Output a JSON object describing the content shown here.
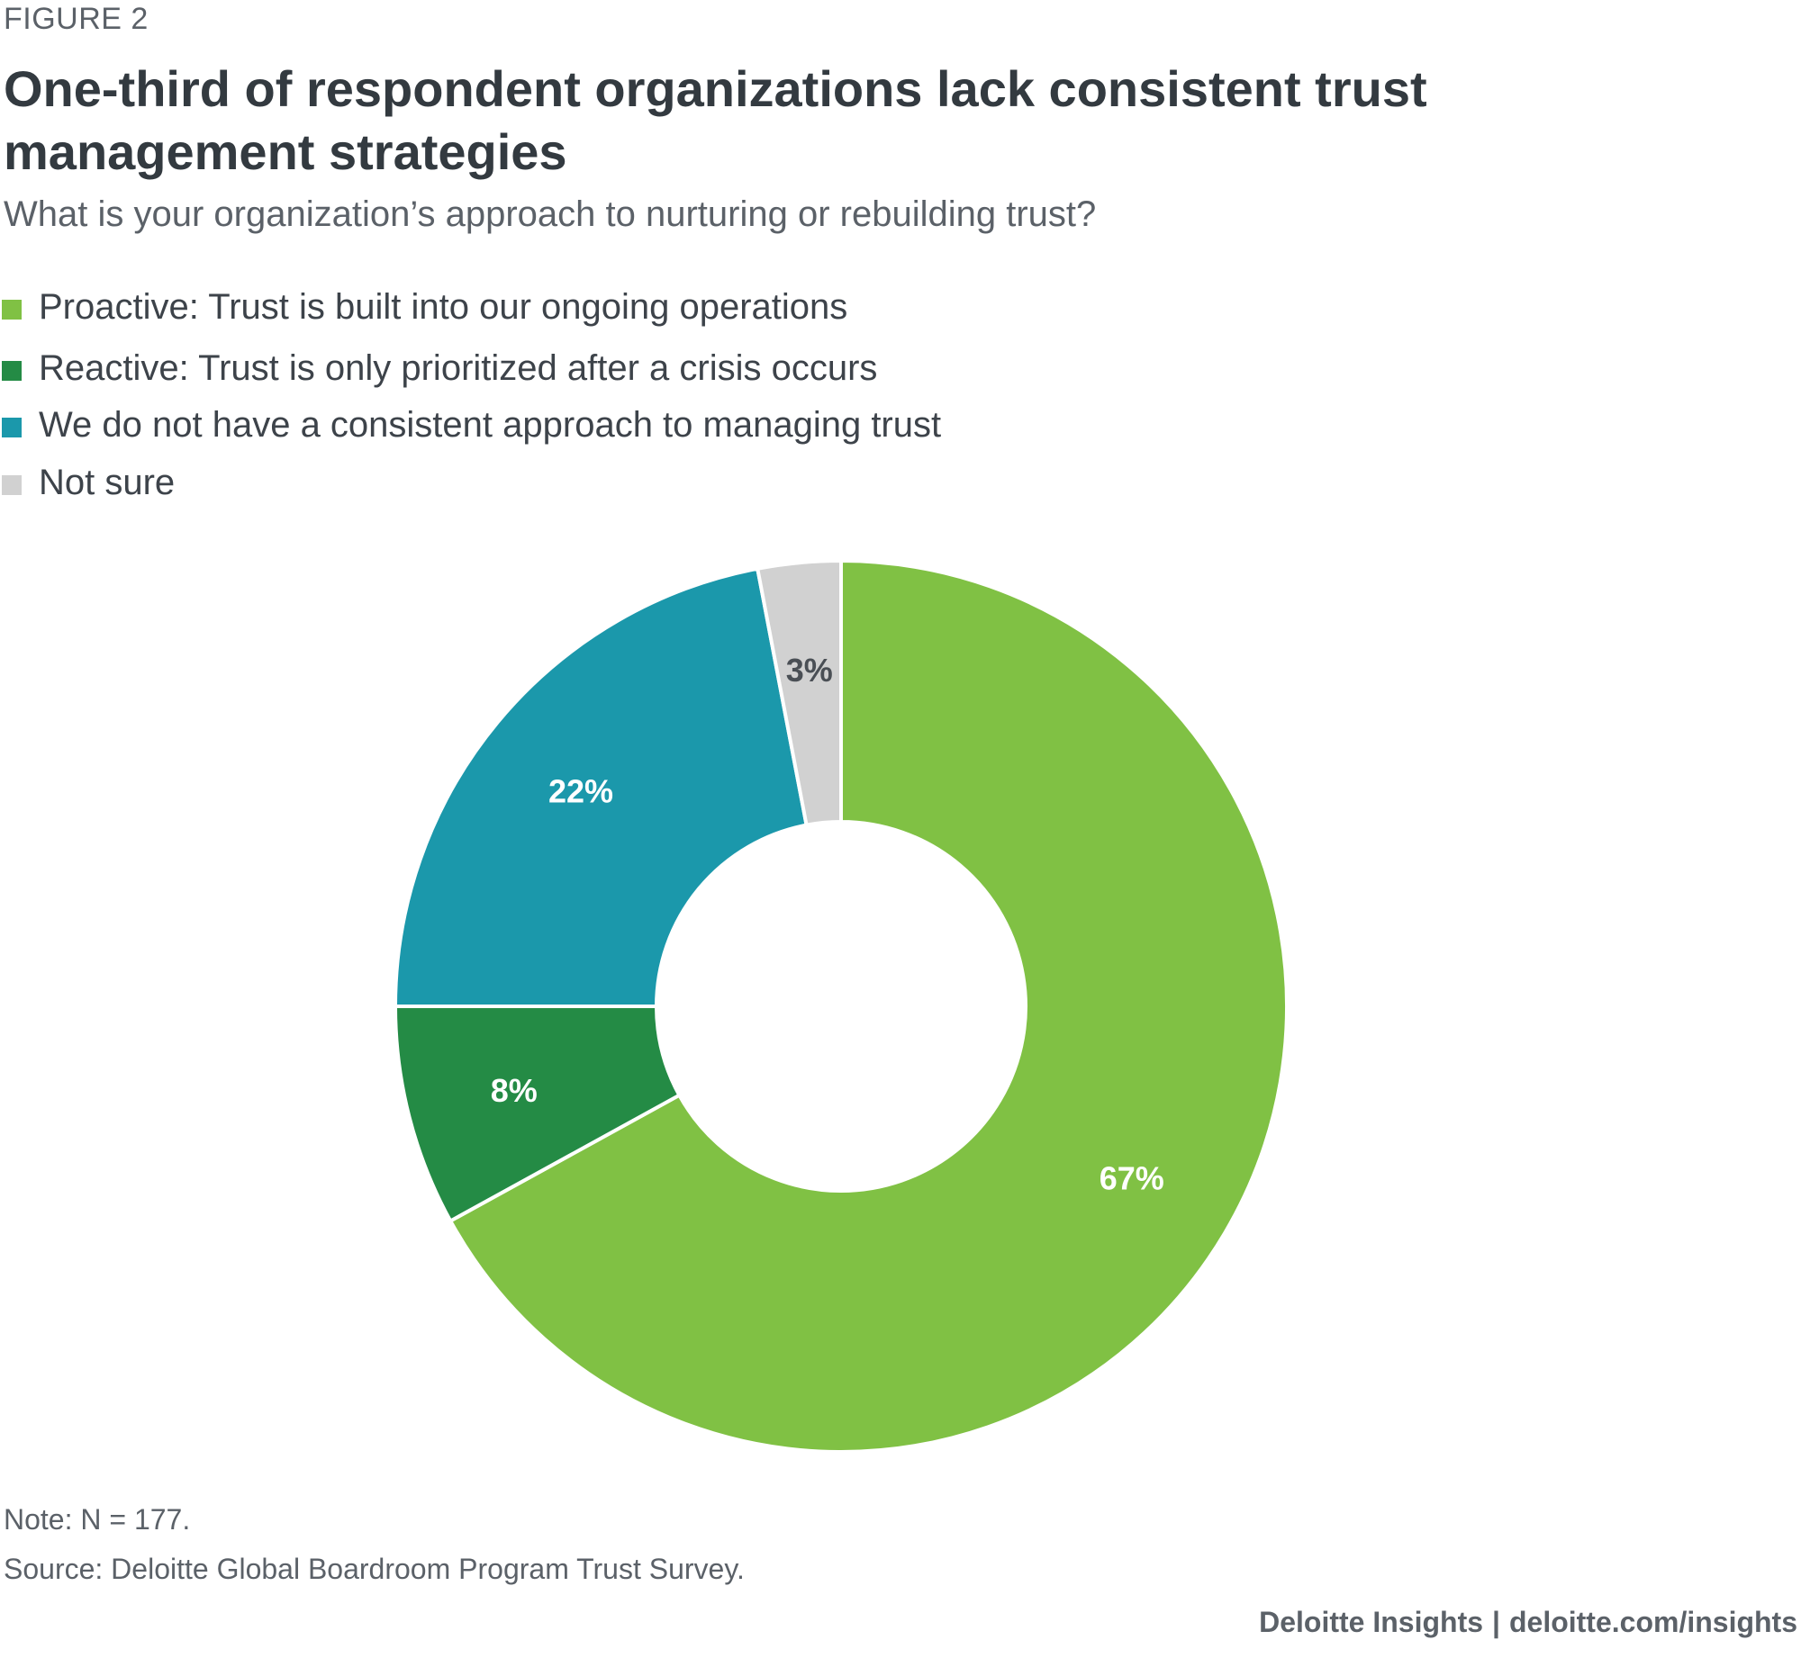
{
  "figure_label": "FIGURE 2",
  "credit": {
    "brand": "Deloitte Insights",
    "separator": "|",
    "url": "deloitte.com/insights"
  },
  "note": "Note: N = 177.",
  "source": "Source: Deloitte Global Boardroom Program Trust Survey.",
  "chart_data": {
    "type": "pie",
    "donut": true,
    "title": "One-third of respondent organizations lack consistent trust management strategies",
    "subtitle": "What is your organization’s approach to nurturing or rebuilding trust?",
    "legend_position": "top-left",
    "start_angle_deg": 0,
    "direction": "clockwise",
    "slices": [
      {
        "label": "Proactive: Trust is built into our ongoing operations",
        "value": 67,
        "value_label": "67%",
        "color": "#80c144",
        "label_color": "#ffffff"
      },
      {
        "label": "Reactive: Trust is only prioritized after a crisis occurs",
        "value": 8,
        "value_label": "8%",
        "color": "#248b45",
        "label_color": "#ffffff"
      },
      {
        "label": "We do not have a consistent approach to managing trust",
        "value": 22,
        "value_label": "22%",
        "color": "#1b98ab",
        "label_color": "#ffffff"
      },
      {
        "label": "Not sure",
        "value": 3,
        "value_label": "3%",
        "color": "#d1d1d1",
        "label_color": "#4a4f55"
      }
    ]
  }
}
